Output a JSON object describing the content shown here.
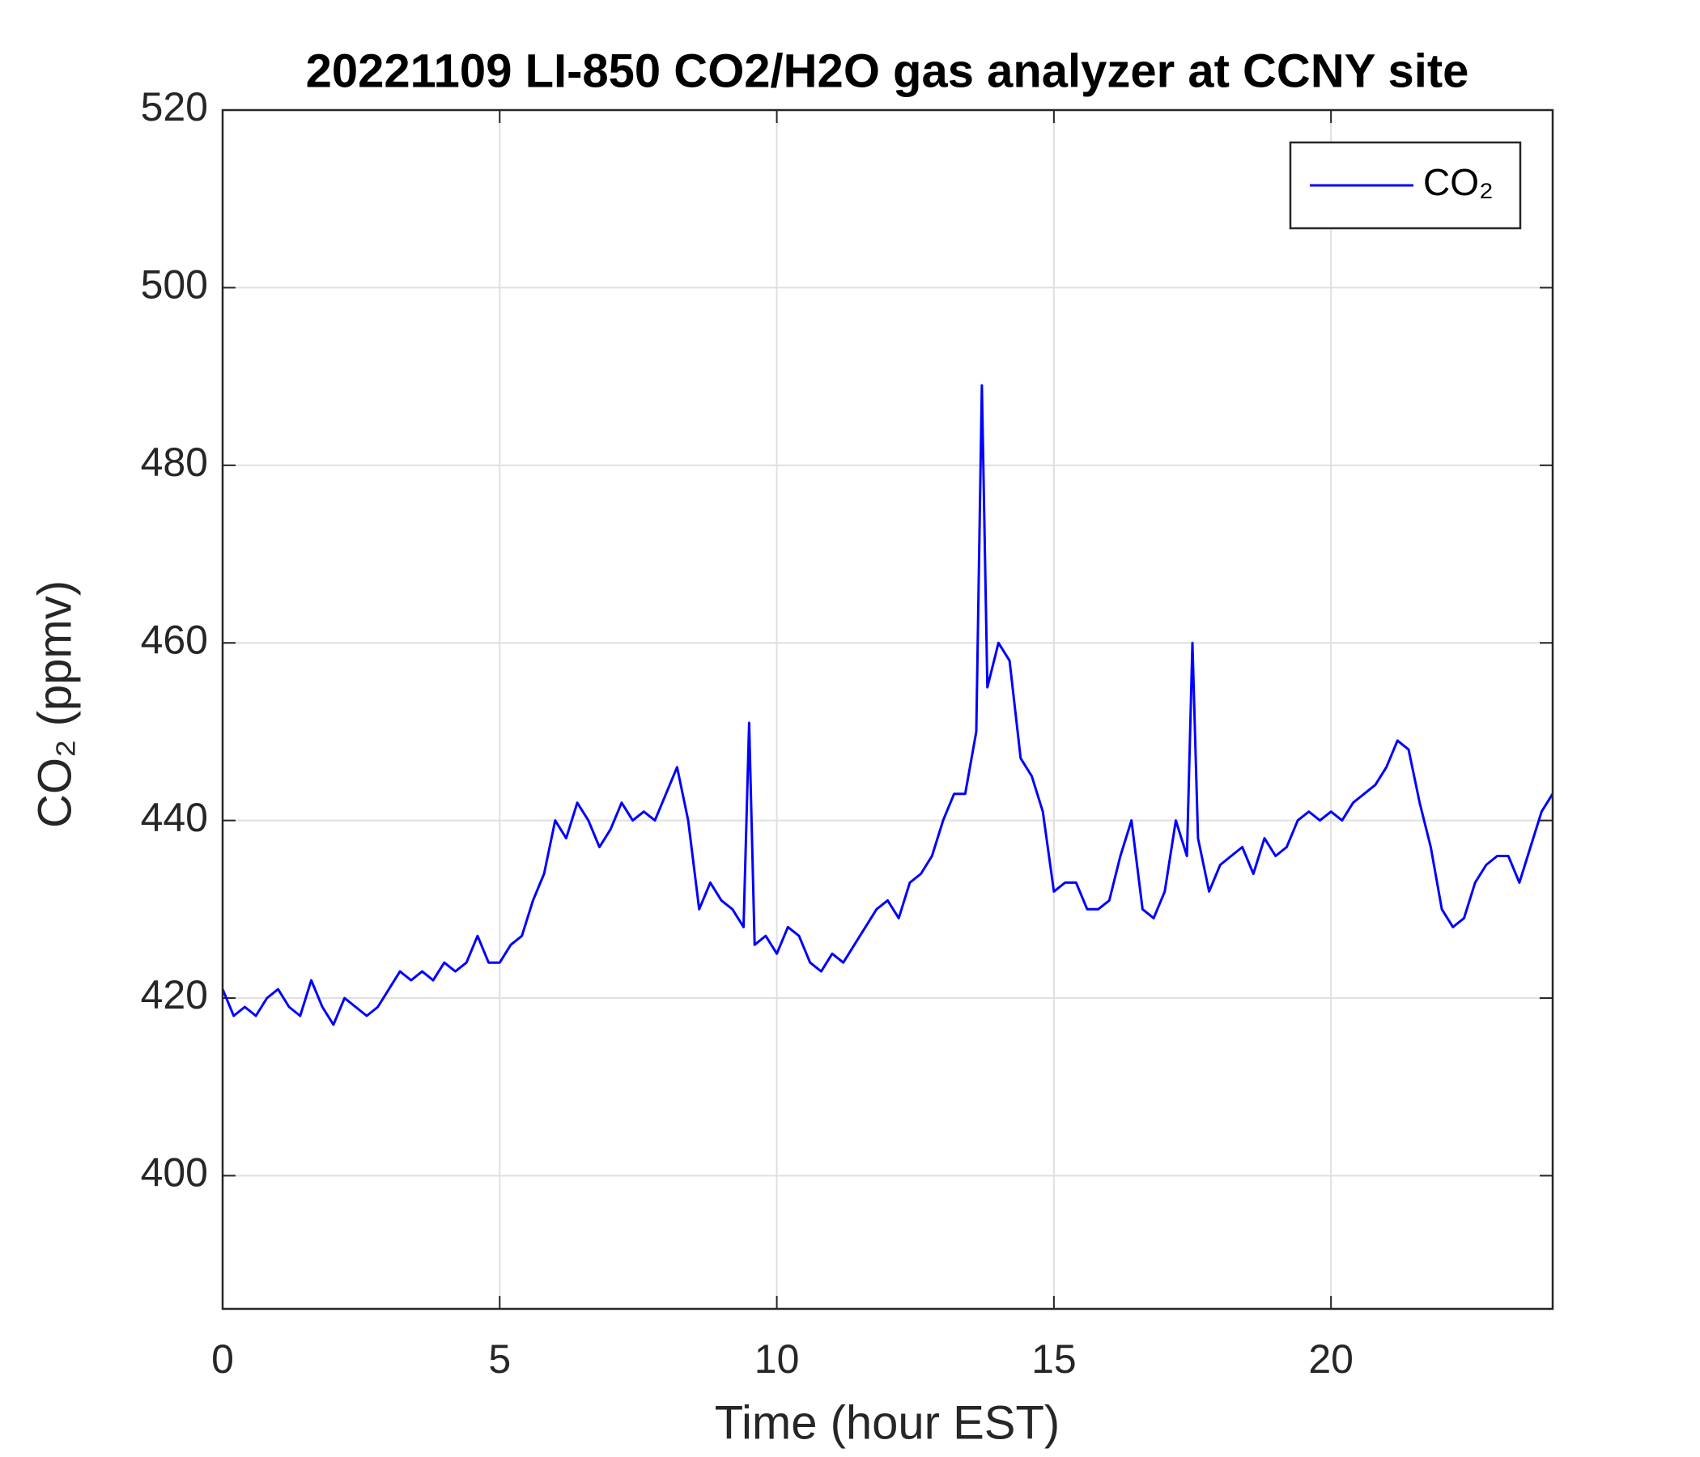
{
  "chart_data": {
    "type": "line",
    "title": "20221109 LI-850 CO2/H2O gas analyzer at CCNY site",
    "x_label": "Time (hour EST)",
    "y_label": "CO₂ (ppmv)",
    "x": [
      0,
      0.2,
      0.4,
      0.6,
      0.8,
      1.0,
      1.2,
      1.4,
      1.6,
      1.8,
      2.0,
      2.2,
      2.4,
      2.6,
      2.8,
      3.0,
      3.2,
      3.4,
      3.6,
      3.8,
      4.0,
      4.2,
      4.4,
      4.6,
      4.8,
      5.0,
      5.2,
      5.4,
      5.6,
      5.8,
      6.0,
      6.2,
      6.4,
      6.6,
      6.8,
      7.0,
      7.2,
      7.4,
      7.6,
      7.8,
      8.0,
      8.2,
      8.4,
      8.6,
      8.8,
      9.0,
      9.2,
      9.4,
      9.5,
      9.6,
      9.8,
      10.0,
      10.2,
      10.4,
      10.6,
      10.8,
      11.0,
      11.2,
      11.4,
      11.6,
      11.8,
      12.0,
      12.2,
      12.4,
      12.6,
      12.8,
      13.0,
      13.2,
      13.4,
      13.6,
      13.7,
      13.8,
      14.0,
      14.2,
      14.4,
      14.6,
      14.8,
      15.0,
      15.2,
      15.4,
      15.6,
      15.8,
      16.0,
      16.2,
      16.4,
      16.6,
      16.8,
      17.0,
      17.2,
      17.4,
      17.5,
      17.6,
      17.8,
      18.0,
      18.2,
      18.4,
      18.6,
      18.8,
      19.0,
      19.2,
      19.4,
      19.6,
      19.8,
      20.0,
      20.2,
      20.4,
      20.6,
      20.8,
      21.0,
      21.2,
      21.4,
      21.6,
      21.8,
      22.0,
      22.2,
      22.4,
      22.6,
      22.8,
      23.0,
      23.2,
      23.4,
      23.6,
      23.8,
      24.0
    ],
    "series": [
      {
        "name": "CO₂",
        "color": "#0000ff",
        "values": [
          421,
          418,
          419,
          418,
          420,
          421,
          419,
          418,
          422,
          419,
          417,
          420,
          419,
          418,
          419,
          421,
          423,
          422,
          423,
          422,
          424,
          423,
          424,
          427,
          424,
          424,
          426,
          427,
          431,
          434,
          440,
          438,
          442,
          440,
          437,
          439,
          442,
          440,
          441,
          440,
          443,
          446,
          440,
          430,
          433,
          431,
          430,
          428,
          451,
          426,
          427,
          425,
          428,
          427,
          424,
          423,
          425,
          424,
          426,
          428,
          430,
          431,
          429,
          433,
          434,
          436,
          440,
          443,
          443,
          450,
          489,
          455,
          460,
          458,
          447,
          445,
          441,
          432,
          433,
          433,
          430,
          430,
          431,
          436,
          440,
          430,
          429,
          432,
          440,
          436,
          460,
          438,
          432,
          435,
          436,
          437,
          434,
          438,
          436,
          437,
          440,
          441,
          440,
          441,
          440,
          442,
          443,
          444,
          446,
          449,
          448,
          442,
          437,
          430,
          428,
          429,
          433,
          435,
          436,
          436,
          433,
          437,
          441,
          443
        ]
      }
    ],
    "xlim": [
      0,
      24
    ],
    "ylim": [
      385,
      520
    ],
    "xticks": [
      0,
      5,
      10,
      15,
      20
    ],
    "yticks": [
      400,
      420,
      440,
      460,
      480,
      500,
      520
    ],
    "grid": true,
    "legend": "northeast"
  }
}
